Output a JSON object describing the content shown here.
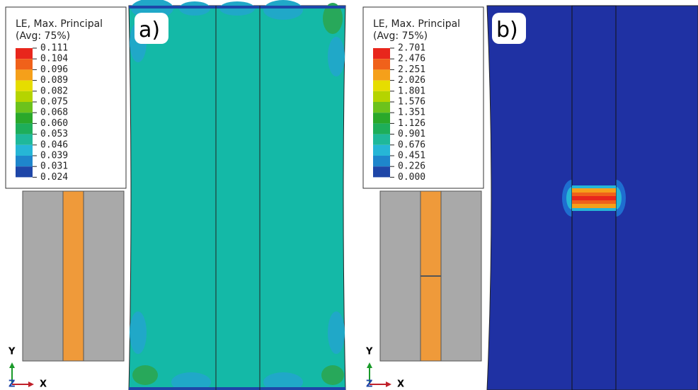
{
  "panels": [
    {
      "label": "a)",
      "legend": {
        "title": "LE, Max. Principal",
        "subtitle": "(Avg: 75%)",
        "values": [
          "0.111",
          "0.104",
          "0.096",
          "0.089",
          "0.082",
          "0.075",
          "0.068",
          "0.060",
          "0.053",
          "0.046",
          "0.039",
          "0.031",
          "0.024"
        ]
      }
    },
    {
      "label": "b)",
      "legend": {
        "title": "LE, Max. Principal",
        "subtitle": "(Avg: 75%)",
        "values": [
          "2.701",
          "2.476",
          "2.251",
          "2.026",
          "1.801",
          "1.576",
          "1.351",
          "1.126",
          "0.901",
          "0.676",
          "0.451",
          "0.226",
          "0.000"
        ]
      }
    }
  ],
  "triad": {
    "y": "Y",
    "z": "Z",
    "x": "X"
  }
}
